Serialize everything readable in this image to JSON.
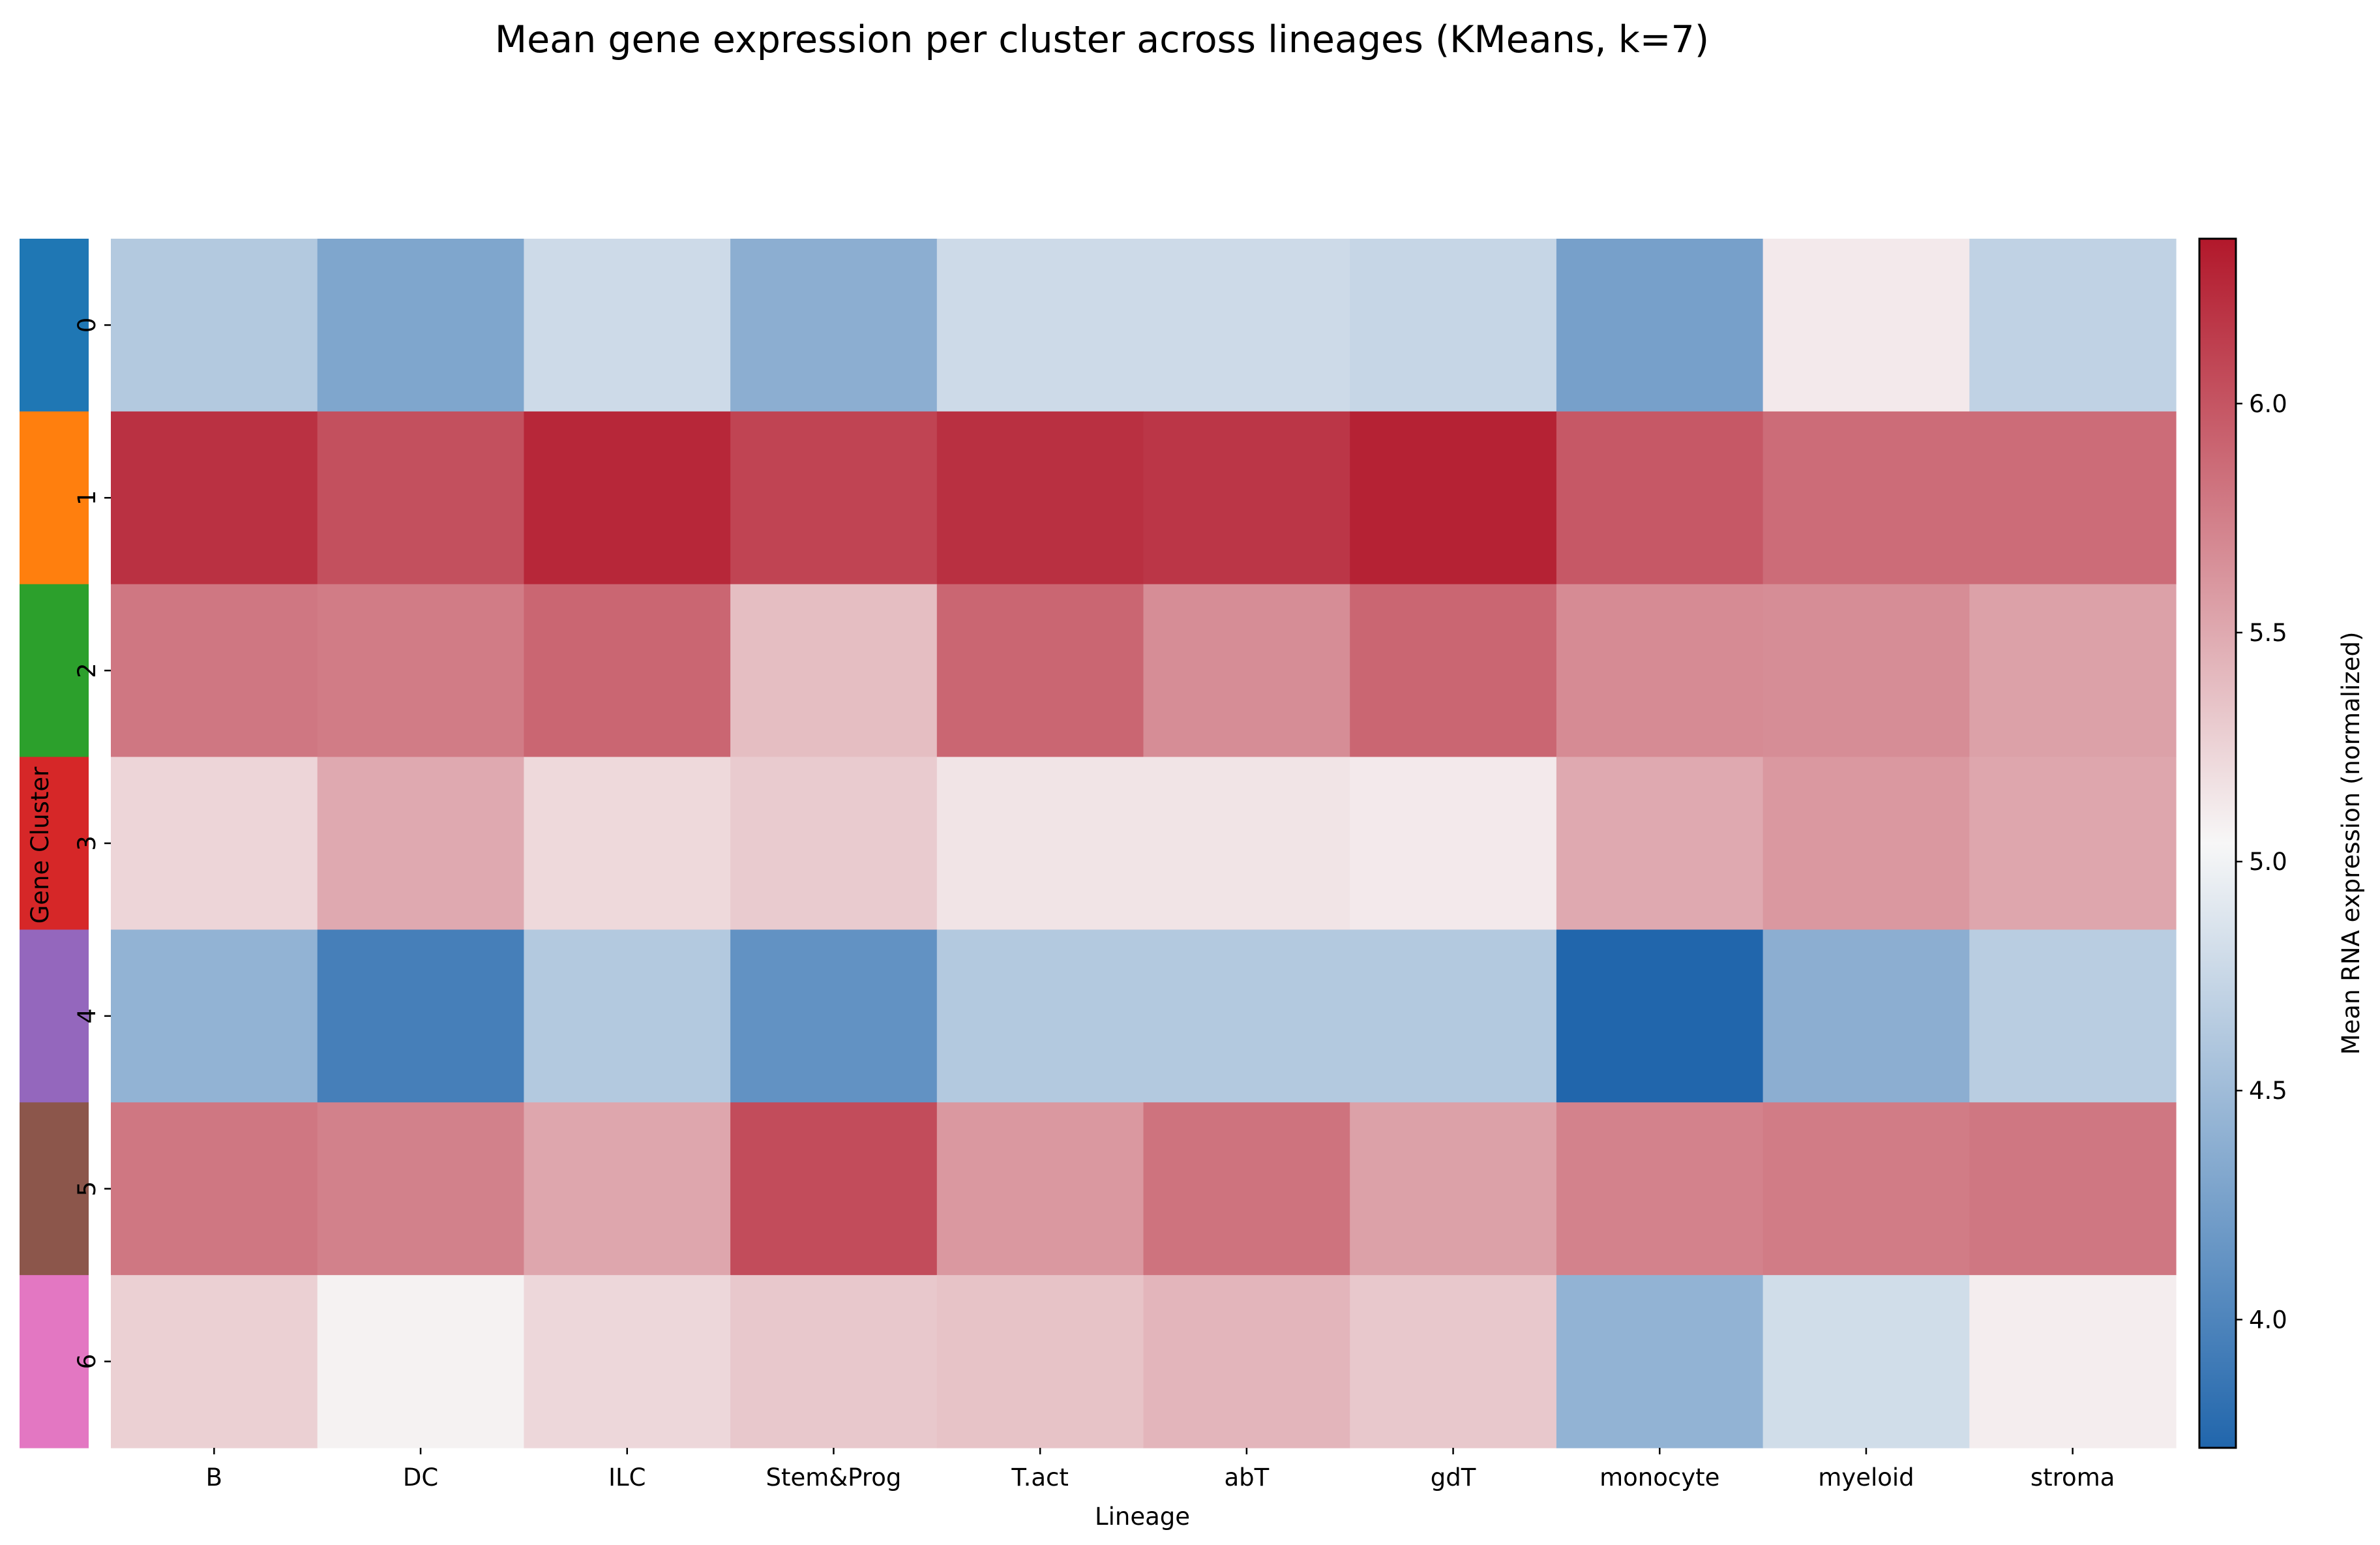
{
  "chart_data": {
    "type": "heatmap",
    "title": "Mean gene expression per cluster across lineages (KMeans, k=7)",
    "xlabel": "Lineage",
    "ylabel": "Gene Cluster",
    "x_categories": [
      "B",
      "DC",
      "ILC",
      "Stem&Prog",
      "T.act",
      "abT",
      "gdT",
      "monocyte",
      "myeloid",
      "stroma"
    ],
    "y_categories": [
      "0",
      "1",
      "2",
      "3",
      "4",
      "5",
      "6"
    ],
    "values": [
      [
        4.62,
        4.3,
        4.78,
        4.38,
        4.78,
        4.78,
        4.74,
        4.25,
        5.12,
        4.7
      ],
      [
        6.21,
        6.03,
        6.27,
        6.1,
        6.22,
        6.18,
        6.3,
        5.98,
        5.86,
        5.86
      ],
      [
        5.8,
        5.77,
        5.9,
        5.38,
        5.9,
        5.67,
        5.9,
        5.68,
        5.67,
        5.55
      ],
      [
        5.24,
        5.5,
        5.22,
        5.3,
        5.15,
        5.15,
        5.12,
        5.5,
        5.6,
        5.52
      ],
      [
        4.42,
        3.95,
        4.62,
        4.12,
        4.62,
        4.62,
        4.62,
        3.72,
        4.38,
        4.66
      ],
      [
        5.8,
        5.74,
        5.52,
        6.05,
        5.6,
        5.82,
        5.55,
        5.73,
        5.77,
        5.8
      ],
      [
        5.27,
        5.07,
        5.23,
        5.32,
        5.35,
        5.43,
        5.32,
        4.42,
        4.8,
        5.1
      ]
    ],
    "color_range": [
      3.72,
      6.36
    ],
    "colormap": [
      "#2166ac",
      "#f7f7f7",
      "#b2182b"
    ],
    "cluster_colors": [
      "#1f77b4",
      "#ff7f0e",
      "#2ca02c",
      "#d62728",
      "#9467bd",
      "#8c564b",
      "#e377c2"
    ],
    "colorbar": {
      "label": "Mean RNA expression (normalized)",
      "ticks": [
        "4.0",
        "4.5",
        "5.0",
        "5.5",
        "6.0"
      ]
    },
    "grid": false
  }
}
